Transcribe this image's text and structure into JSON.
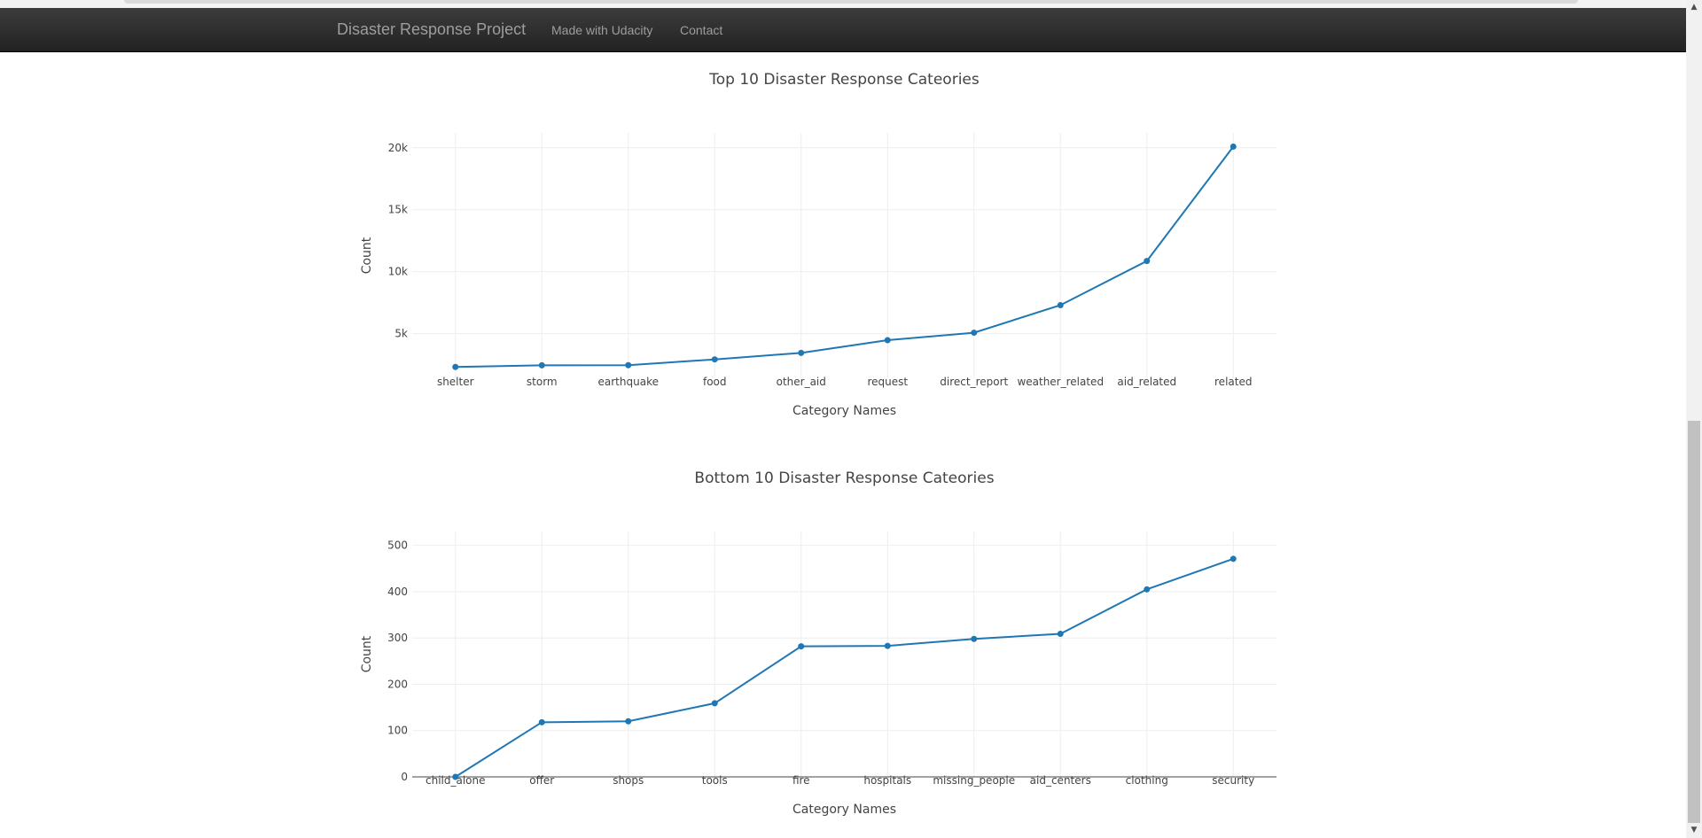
{
  "navbar": {
    "brand": "Disaster Response Project",
    "links": [
      "Made with Udacity",
      "Contact"
    ]
  },
  "theme": {
    "navbar_bg": "#222222",
    "nav_text": "#9d9d9d",
    "line_color": "#1f77b4",
    "grid_color": "#eeeeee",
    "zero_line_color": "#444444"
  },
  "chart_data": [
    {
      "type": "line",
      "title": "Top 10 Disaster Response Cateories",
      "xlabel": "Category Names",
      "ylabel": "Count",
      "categories": [
        "shelter",
        "storm",
        "earthquake",
        "food",
        "other_aid",
        "request",
        "direct_report",
        "weather_related",
        "aid_related",
        "related"
      ],
      "values": [
        2314,
        2443,
        2455,
        2923,
        3446,
        4474,
        5075,
        7297,
        10860,
        20094
      ],
      "yticks": [
        5000,
        10000,
        15000,
        20000
      ],
      "ytick_labels": [
        "5k",
        "10k",
        "15k",
        "20k"
      ],
      "ylim": [
        1400,
        21200
      ],
      "grid": true,
      "markers": true
    },
    {
      "type": "line",
      "title": "Bottom 10 Disaster Response Cateories",
      "xlabel": "Category Names",
      "ylabel": "Count",
      "categories": [
        "child_alone",
        "offer",
        "shops",
        "tools",
        "fire",
        "hospitals",
        "missing_people",
        "aid_centers",
        "clothing",
        "security"
      ],
      "values": [
        0,
        118,
        120,
        159,
        282,
        283,
        298,
        309,
        405,
        471
      ],
      "yticks": [
        0,
        100,
        200,
        300,
        400,
        500
      ],
      "ytick_labels": [
        "0",
        "100",
        "200",
        "300",
        "400",
        "500"
      ],
      "ylim": [
        0,
        530
      ],
      "grid": true,
      "markers": true,
      "zero_line": true
    }
  ]
}
